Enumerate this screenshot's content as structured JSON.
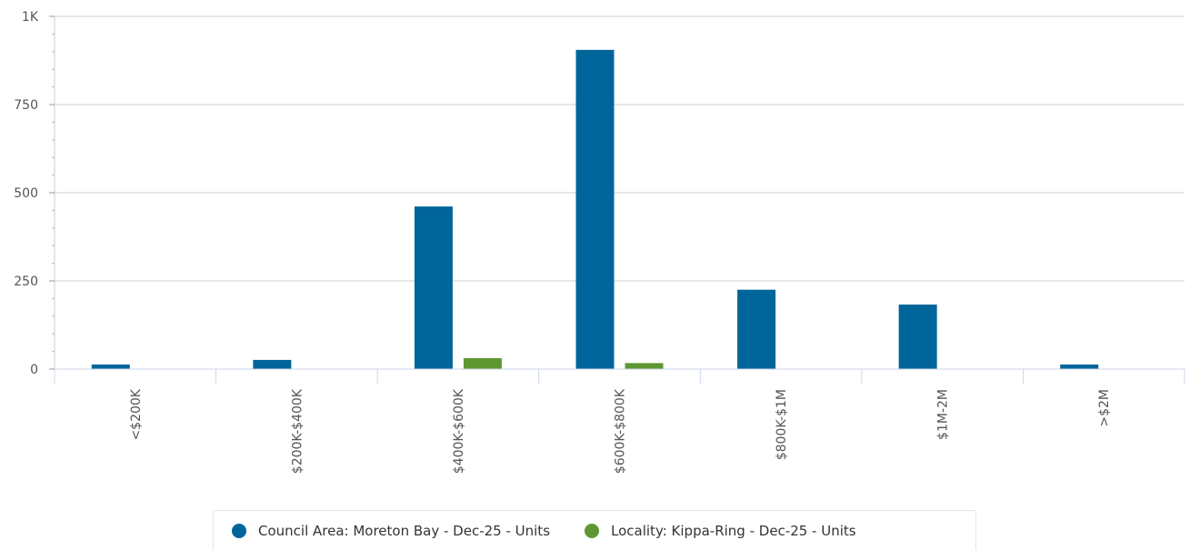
{
  "chart_data": {
    "type": "bar",
    "categories": [
      "<$200K",
      "$200K-$400K",
      "$400K-$600K",
      "$600K-$800K",
      "$800K-$1M",
      "$1M-2M",
      ">$2M"
    ],
    "series": [
      {
        "name": "Council Area: Moreton Bay - Dec-25 - Units",
        "color": "#00659a",
        "values": [
          13,
          26,
          461,
          905,
          225,
          183,
          13
        ]
      },
      {
        "name": "Locality: Kippa-Ring - Dec-25 - Units",
        "color": "#5e9732",
        "values": [
          0,
          0,
          31,
          17,
          0,
          0,
          0
        ]
      }
    ],
    "ylim": [
      0,
      1000
    ],
    "yticks": [
      0,
      250,
      500,
      750,
      1000
    ],
    "ytick_labels": [
      "0",
      "250",
      "500",
      "750",
      "1K"
    ],
    "grid": true,
    "legend_position": "bottom"
  }
}
